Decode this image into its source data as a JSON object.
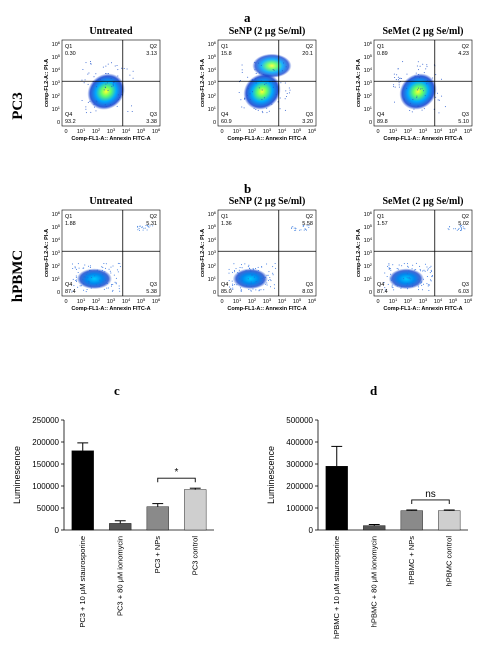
{
  "panels": {
    "a": "a",
    "b": "b",
    "c": "c",
    "d": "d"
  },
  "rows": [
    {
      "label": "PC3",
      "plots": [
        {
          "title": "Untreated",
          "q1_label": "Q1",
          "q1": "0.30",
          "q2_label": "Q2",
          "q2": "3.13",
          "q3_label": "Q3",
          "q3": "3.38",
          "q4_label": "Q4",
          "q4": "93.2"
        },
        {
          "title": "SeNP (2 µg Se/ml)",
          "q1_label": "Q1",
          "q1": "15.8",
          "q2_label": "Q2",
          "q2": "20.1",
          "q3_label": "Q3",
          "q3": "3.20",
          "q4_label": "Q4",
          "q4": "60.9"
        },
        {
          "title": "SeMet (2 µg Se/ml)",
          "q1_label": "Q1",
          "q1": "0.89",
          "q2_label": "Q2",
          "q2": "4.23",
          "q3_label": "Q3",
          "q3": "5.10",
          "q4_label": "Q4",
          "q4": "89.8"
        }
      ]
    },
    {
      "label": "hPBMC",
      "plots": [
        {
          "title": "Untreated",
          "q1_label": "Q1",
          "q1": "1.88",
          "q2_label": "Q2",
          "q2": "5.31",
          "q3_label": "Q3",
          "q3": "5.38",
          "q4_label": "Q4",
          "q4": "87.4"
        },
        {
          "title": "SeNP (2 µg Se/ml)",
          "q1_label": "Q1",
          "q1": "1.36",
          "q2_label": "Q2",
          "q2": "5.58",
          "q3_label": "Q3",
          "q3": "8.03",
          "q4_label": "Q4",
          "q4": "85.0"
        },
        {
          "title": "SeMet (2 µg Se/ml)",
          "q1_label": "Q1",
          "q1": "1.57",
          "q2_label": "Q2",
          "q2": "5.02",
          "q3_label": "Q3",
          "q3": "6.03",
          "q4_label": "Q4",
          "q4": "87.4"
        }
      ]
    }
  ],
  "flow_axes": {
    "xlabel": "Comp-FL1-A:: Annexin FITC-A",
    "ylabel": "comp-FL2-A:: PI-A",
    "ticks": [
      "0",
      "10^1",
      "10^2",
      "10^3",
      "10^4",
      "10^5",
      "10^6"
    ]
  },
  "chart_data": [
    {
      "type": "bar",
      "panel": "c",
      "ylabel": "Luminescence",
      "ylim": [
        0,
        250000
      ],
      "yticks": [
        "0",
        "50000",
        "100000",
        "150000",
        "200000",
        "250000"
      ],
      "categories": [
        "PC3 + 10 μM staurosporine",
        "PC3 + 80 μM ionomycin",
        "PC3 + NPs",
        "PC3 control"
      ],
      "values": [
        180000,
        15000,
        53000,
        92000
      ],
      "errors": [
        18000,
        6000,
        7000,
        3000
      ],
      "colors": [
        "#000000",
        "#555555",
        "#8a8a8a",
        "#cfcfcf"
      ],
      "annotation": {
        "text": "*",
        "between": [
          2,
          3
        ]
      }
    },
    {
      "type": "bar",
      "panel": "d",
      "ylabel": "Luminescence",
      "ylim": [
        0,
        500000
      ],
      "yticks": [
        "0",
        "100000",
        "200000",
        "300000",
        "400000",
        "500000"
      ],
      "categories": [
        "hPBMC + 10 μM staurosporine",
        "hPBMC + 80 μM ionomycin",
        "hPBMC + NPs",
        "hPBMC control"
      ],
      "values": [
        290000,
        20000,
        88000,
        88000
      ],
      "errors": [
        90000,
        5000,
        3000,
        3000
      ],
      "colors": [
        "#000000",
        "#555555",
        "#8a8a8a",
        "#cfcfcf"
      ],
      "annotation": {
        "text": "ns",
        "between": [
          2,
          3
        ]
      }
    }
  ]
}
